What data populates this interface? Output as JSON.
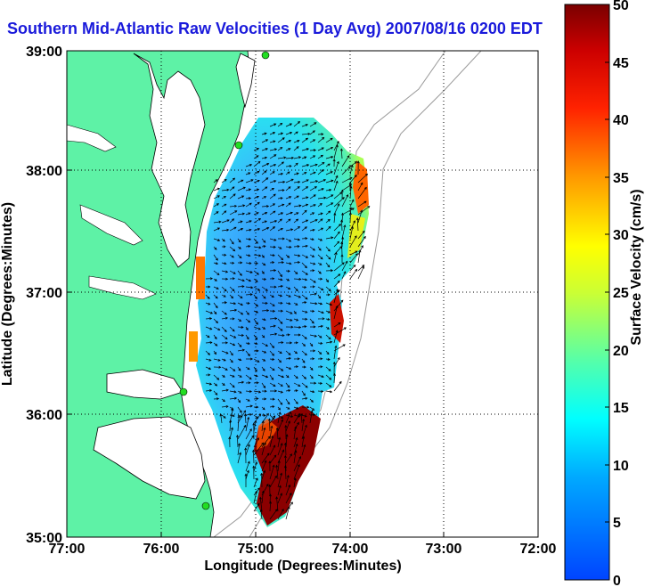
{
  "title": "Southern Mid-Atlantic Raw Velocities (1 Day Avg) 2007/08/16 0200 EDT",
  "map": {
    "xlabel": "Longitude (Degrees:Minutes)",
    "ylabel": "Latitude (Degrees:Minutes)",
    "lon_ticks": [
      "77:00",
      "76:00",
      "75:00",
      "74:00",
      "73:00",
      "72:00"
    ],
    "lat_ticks": [
      "39:00",
      "38:00",
      "37:00",
      "36:00",
      "35:00"
    ],
    "lon_range": [
      -77,
      -72
    ],
    "lat_range": [
      35,
      39
    ],
    "land_color": "#5ef2a6",
    "water_color": "#ffffff"
  },
  "colorbar": {
    "label": "Surface Velocity (cm/s)",
    "ticks": [
      "0",
      "5",
      "10",
      "15",
      "20",
      "25",
      "30",
      "35",
      "40",
      "45",
      "50"
    ],
    "range": [
      0,
      50
    ]
  }
}
